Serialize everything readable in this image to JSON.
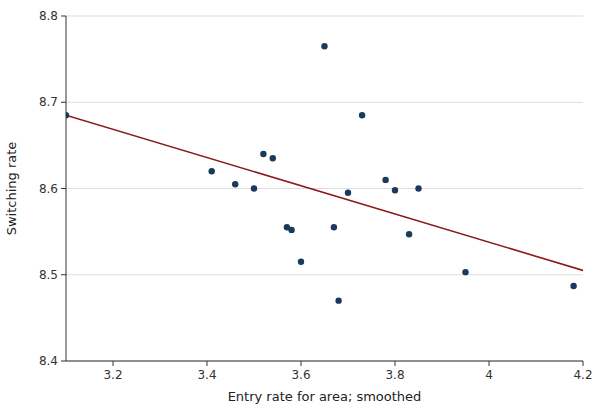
{
  "chart_data": {
    "type": "scatter",
    "xlabel": "Entry rate for area; smoothed",
    "ylabel": "Switching rate",
    "xlim": [
      3.1,
      4.2
    ],
    "ylim": [
      8.4,
      8.8
    ],
    "xticks": [
      3.2,
      3.4,
      3.6,
      3.8,
      4,
      4.2
    ],
    "yticks": [
      8.4,
      8.5,
      8.6,
      8.7,
      8.8
    ],
    "grid": "y",
    "series": [
      {
        "type": "scatter",
        "color": "#1a3a5c",
        "marker": "circle",
        "x": [
          3.1,
          3.41,
          3.46,
          3.5,
          3.52,
          3.54,
          3.57,
          3.58,
          3.6,
          3.65,
          3.67,
          3.68,
          3.7,
          3.73,
          3.78,
          3.8,
          3.83,
          3.85,
          3.95,
          4.18
        ],
        "values": [
          8.685,
          8.62,
          8.605,
          8.6,
          8.64,
          8.635,
          8.555,
          8.552,
          8.515,
          8.765,
          8.555,
          8.47,
          8.595,
          8.685,
          8.61,
          8.598,
          8.547,
          8.6,
          8.503,
          8.487
        ]
      },
      {
        "type": "line",
        "color": "#8b1a1a",
        "line_style": "solid",
        "x": [
          3.1,
          4.2
        ],
        "values": [
          8.685,
          8.505
        ]
      }
    ]
  }
}
